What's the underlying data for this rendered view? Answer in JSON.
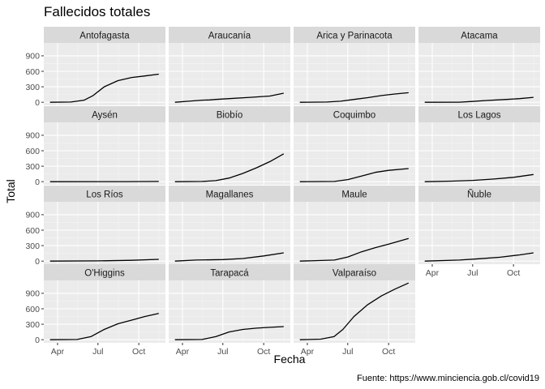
{
  "chart_data": {
    "type": "line",
    "title": "Fallecidos totales",
    "xlabel": "Fecha",
    "ylabel": "Total",
    "caption": "Fuente: https://www.minciencia.gob.cl/covid19",
    "facet_layout": "4 columns, free x labels on bottom row of each column",
    "x_range": [
      "2020-03-01",
      "2020-11-30"
    ],
    "x_ticks": [
      {
        "label": "Apr",
        "date": "2020-04-01"
      },
      {
        "label": "Jul",
        "date": "2020-07-01"
      },
      {
        "label": "Oct",
        "date": "2020-10-01"
      }
    ],
    "ylim": [
      -60,
      1150
    ],
    "y_ticks": [
      0,
      300,
      600,
      900
    ],
    "grid": true,
    "line_color": "#000000",
    "panel_background": "#ebebeb",
    "strip_background": "#d9d9d9",
    "panels": [
      {
        "region": "Antofagasta",
        "series": [
          [
            "2020-03-15",
            0
          ],
          [
            "2020-05-01",
            5
          ],
          [
            "2020-05-31",
            40
          ],
          [
            "2020-06-20",
            130
          ],
          [
            "2020-07-15",
            300
          ],
          [
            "2020-08-15",
            420
          ],
          [
            "2020-09-15",
            480
          ],
          [
            "2020-10-15",
            510
          ],
          [
            "2020-11-15",
            545
          ]
        ]
      },
      {
        "region": "Araucanía",
        "series": [
          [
            "2020-03-15",
            0
          ],
          [
            "2020-04-15",
            20
          ],
          [
            "2020-05-15",
            40
          ],
          [
            "2020-06-01",
            45
          ],
          [
            "2020-06-15",
            55
          ],
          [
            "2020-07-15",
            70
          ],
          [
            "2020-09-01",
            95
          ],
          [
            "2020-10-15",
            120
          ],
          [
            "2020-11-15",
            175
          ]
        ]
      },
      {
        "region": "Arica y Parinacota",
        "series": [
          [
            "2020-03-15",
            0
          ],
          [
            "2020-05-15",
            5
          ],
          [
            "2020-06-15",
            20
          ],
          [
            "2020-07-15",
            55
          ],
          [
            "2020-08-15",
            90
          ],
          [
            "2020-09-15",
            130
          ],
          [
            "2020-10-15",
            160
          ],
          [
            "2020-11-15",
            185
          ]
        ]
      },
      {
        "region": "Atacama",
        "series": [
          [
            "2020-03-15",
            0
          ],
          [
            "2020-05-31",
            2
          ],
          [
            "2020-06-30",
            15
          ],
          [
            "2020-08-01",
            35
          ],
          [
            "2020-09-15",
            55
          ],
          [
            "2020-10-15",
            70
          ],
          [
            "2020-11-15",
            95
          ]
        ]
      },
      {
        "region": "Aysén",
        "series": [
          [
            "2020-03-15",
            0
          ],
          [
            "2020-09-01",
            1
          ],
          [
            "2020-11-15",
            5
          ]
        ]
      },
      {
        "region": "Biobío",
        "series": [
          [
            "2020-03-15",
            0
          ],
          [
            "2020-05-15",
            5
          ],
          [
            "2020-06-15",
            20
          ],
          [
            "2020-07-15",
            70
          ],
          [
            "2020-08-15",
            160
          ],
          [
            "2020-09-15",
            270
          ],
          [
            "2020-10-15",
            390
          ],
          [
            "2020-11-15",
            540
          ]
        ]
      },
      {
        "region": "Coquimbo",
        "series": [
          [
            "2020-03-15",
            0
          ],
          [
            "2020-06-01",
            5
          ],
          [
            "2020-07-01",
            40
          ],
          [
            "2020-08-01",
            110
          ],
          [
            "2020-09-01",
            180
          ],
          [
            "2020-10-01",
            220
          ],
          [
            "2020-11-15",
            255
          ]
        ]
      },
      {
        "region": "Los Lagos",
        "series": [
          [
            "2020-03-15",
            0
          ],
          [
            "2020-05-15",
            10
          ],
          [
            "2020-07-01",
            25
          ],
          [
            "2020-08-15",
            50
          ],
          [
            "2020-10-01",
            85
          ],
          [
            "2020-11-15",
            140
          ]
        ]
      },
      {
        "region": "Los Ríos",
        "series": [
          [
            "2020-03-15",
            0
          ],
          [
            "2020-07-01",
            5
          ],
          [
            "2020-09-15",
            15
          ],
          [
            "2020-11-15",
            35
          ]
        ]
      },
      {
        "region": "Magallanes",
        "series": [
          [
            "2020-03-15",
            0
          ],
          [
            "2020-05-01",
            20
          ],
          [
            "2020-07-01",
            30
          ],
          [
            "2020-08-15",
            50
          ],
          [
            "2020-10-01",
            100
          ],
          [
            "2020-11-15",
            160
          ]
        ]
      },
      {
        "region": "Maule",
        "series": [
          [
            "2020-03-15",
            0
          ],
          [
            "2020-06-01",
            20
          ],
          [
            "2020-07-01",
            80
          ],
          [
            "2020-08-01",
            180
          ],
          [
            "2020-09-01",
            260
          ],
          [
            "2020-10-01",
            330
          ],
          [
            "2020-11-15",
            440
          ]
        ]
      },
      {
        "region": "Ñuble",
        "series": [
          [
            "2020-03-15",
            0
          ],
          [
            "2020-06-01",
            20
          ],
          [
            "2020-07-15",
            45
          ],
          [
            "2020-09-01",
            75
          ],
          [
            "2020-10-15",
            120
          ],
          [
            "2020-11-15",
            160
          ]
        ]
      },
      {
        "region": "O'Higgins",
        "series": [
          [
            "2020-03-15",
            0
          ],
          [
            "2020-05-15",
            5
          ],
          [
            "2020-06-15",
            60
          ],
          [
            "2020-07-15",
            200
          ],
          [
            "2020-08-15",
            310
          ],
          [
            "2020-09-15",
            380
          ],
          [
            "2020-10-15",
            450
          ],
          [
            "2020-11-15",
            510
          ]
        ]
      },
      {
        "region": "Tarapacá",
        "series": [
          [
            "2020-03-15",
            0
          ],
          [
            "2020-05-15",
            5
          ],
          [
            "2020-06-15",
            60
          ],
          [
            "2020-07-15",
            150
          ],
          [
            "2020-08-15",
            200
          ],
          [
            "2020-09-15",
            225
          ],
          [
            "2020-10-15",
            240
          ],
          [
            "2020-11-15",
            255
          ]
        ]
      },
      {
        "region": "Valparaíso",
        "series": [
          [
            "2020-03-15",
            0
          ],
          [
            "2020-05-01",
            10
          ],
          [
            "2020-05-31",
            60
          ],
          [
            "2020-06-20",
            200
          ],
          [
            "2020-07-15",
            450
          ],
          [
            "2020-08-15",
            680
          ],
          [
            "2020-09-15",
            850
          ],
          [
            "2020-10-15",
            980
          ],
          [
            "2020-11-15",
            1100
          ]
        ]
      }
    ]
  }
}
